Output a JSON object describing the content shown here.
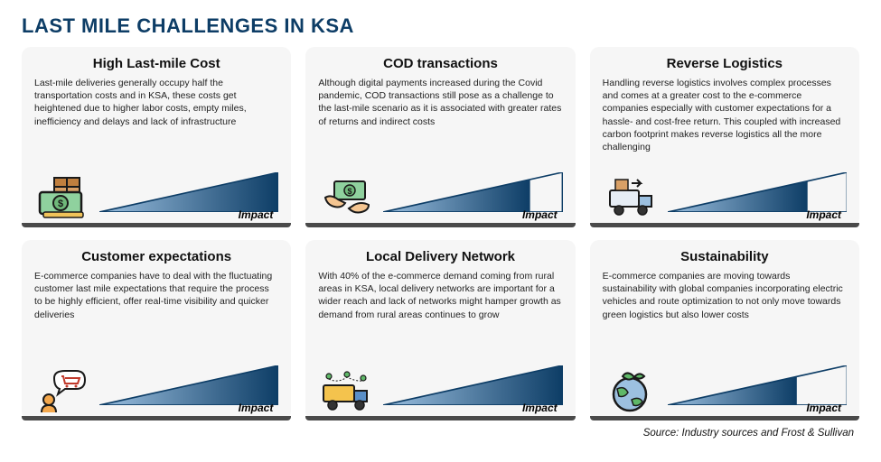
{
  "title": "LAST MILE CHALLENGES IN KSA",
  "title_color": "#0d3d66",
  "card_bg": "#f6f6f6",
  "footer_bar_color": "#4a4a4a",
  "triangle": {
    "border_color": "#0d3d66",
    "fill_gradient_start": "#9cc0e0",
    "fill_gradient_end": "#0d3d66",
    "impact_label": "Impact"
  },
  "source": "Source: Industry sources and Frost & Sullivan",
  "cards": [
    {
      "title": "High Last-mile Cost",
      "body": "Last-mile deliveries generally occupy half the transportation costs and in KSA, these costs get heightened due to higher labor costs, empty miles, inefficiency and delays and lack of infrastructure",
      "impact_fill": 1.0,
      "icon": "money-box"
    },
    {
      "title": "COD transactions",
      "body": "Although digital payments increased during the Covid pandemic, COD transactions still pose as a challenge to the last-mile scenario as it is associated with greater rates of returns and indirect costs",
      "impact_fill": 0.82,
      "icon": "cod-hands"
    },
    {
      "title": "Reverse Logistics",
      "body": "Handling reverse logistics involves complex processes and comes at a greater cost to the e-commerce companies especially with customer expectations for a hassle- and cost-free return. This coupled with increased carbon footprint makes reverse logistics all the more challenging",
      "impact_fill": 0.78,
      "icon": "reverse-truck"
    },
    {
      "title": "Customer expectations",
      "body": "E-commerce companies have to deal with the fluctuating customer last mile expectations that require the process to be highly efficient, offer real-time visibility and quicker deliveries",
      "impact_fill": 1.0,
      "icon": "customer-cart"
    },
    {
      "title": "Local Delivery Network",
      "body": "With 40% of the e-commerce demand coming from rural areas in KSA, local delivery networks are important for a wider reach and lack of networks might hamper growth as demand from rural areas continues to grow",
      "impact_fill": 1.0,
      "icon": "delivery-truck"
    },
    {
      "title": "Sustainability",
      "body": "E-commerce companies are moving towards sustainability with global companies incorporating electric vehicles and route optimization to not only move towards green logistics but also lower costs",
      "impact_fill": 0.72,
      "icon": "green-globe"
    }
  ]
}
